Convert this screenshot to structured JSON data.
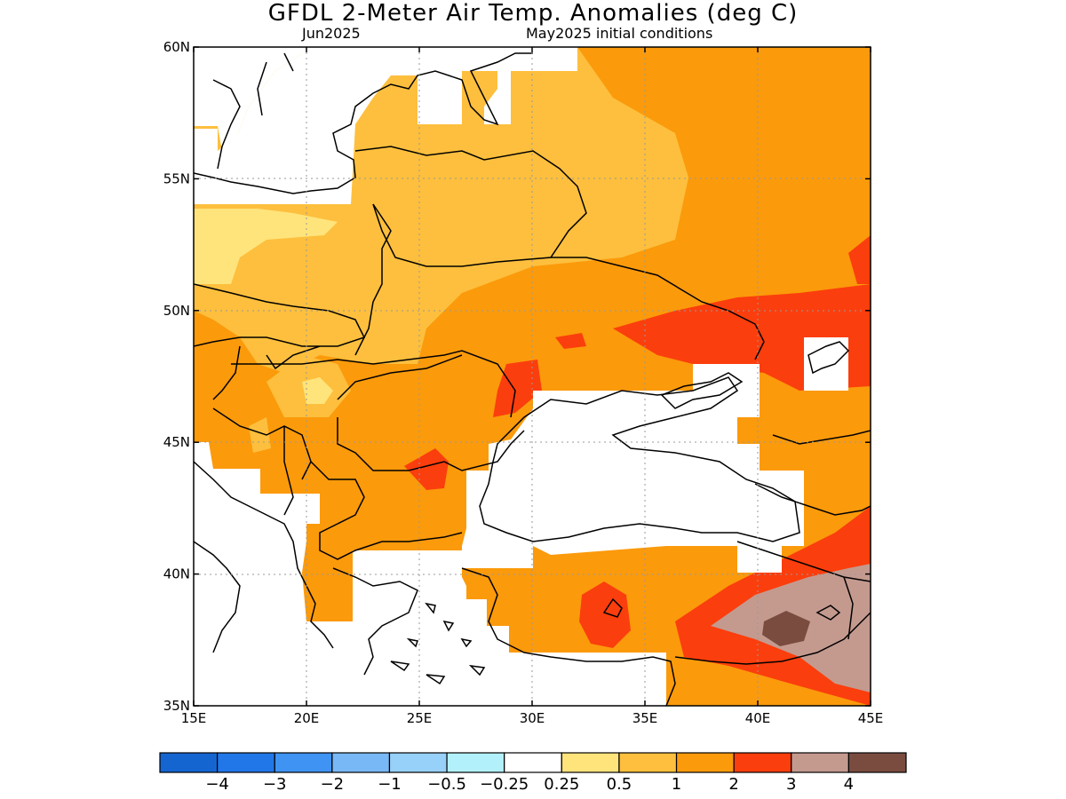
{
  "header": {
    "title": "GFDL 2-Meter Air Temp. Anomalies (deg C)",
    "subtitle_left": "Jun2025",
    "subtitle_right": "May2025 initial conditions"
  },
  "map": {
    "lon_ticks": [
      "15E",
      "20E",
      "25E",
      "30E",
      "35E",
      "40E",
      "45E"
    ],
    "lat_ticks": [
      "35N",
      "40N",
      "45N",
      "50N",
      "55N",
      "60N"
    ],
    "gridlines": "dotted"
  },
  "colorbar": {
    "colors": [
      "#1565d0",
      "#2277e8",
      "#3f93f2",
      "#79b8f6",
      "#97d0f8",
      "#b2f1fb",
      "#ffffff",
      "#ffe47c",
      "#fdbf3d",
      "#fb9a0b",
      "#fb3e0d",
      "#c49a8f",
      "#7a4c40"
    ],
    "labels": [
      "−4",
      "−3",
      "−2",
      "−1",
      "−0.5",
      "−0.25",
      "0.25",
      "0.5",
      "1",
      "2",
      "3",
      "4"
    ]
  }
}
